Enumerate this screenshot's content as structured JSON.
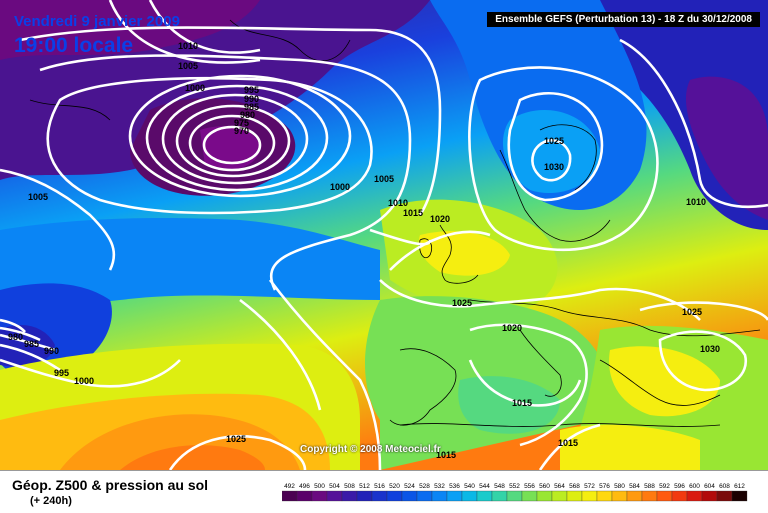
{
  "header": {
    "date_line": "Vendredi 9 janvier 2009",
    "local_time": "19:00 locale",
    "run_info": "Ensemble GEFS (Perturbation 13) - 18 Z du 30/12/2008"
  },
  "footer": {
    "product_title": "Géop. Z500 & pression au sol",
    "forecast_hour": "(+ 240h)",
    "copyright": "Copyright © 2008 Meteociel.fr"
  },
  "legend": {
    "values": [
      "492",
      "496",
      "500",
      "504",
      "508",
      "512",
      "516",
      "520",
      "524",
      "528",
      "532",
      "536",
      "540",
      "544",
      "548",
      "552",
      "556",
      "560",
      "564",
      "568",
      "572",
      "576",
      "580",
      "584",
      "588",
      "592",
      "596",
      "600",
      "604",
      "608",
      "612"
    ],
    "colors": [
      "#4b0052",
      "#5a006a",
      "#6a0a80",
      "#551199",
      "#3a1aa8",
      "#2222b8",
      "#1a33cc",
      "#1040dd",
      "#0b55e6",
      "#0a6cf0",
      "#0a85f5",
      "#0aa0f5",
      "#0ab8e6",
      "#1acbcb",
      "#33d3a8",
      "#55d980",
      "#77e055",
      "#99e633",
      "#bbec22",
      "#ddee11",
      "#f5ee10",
      "#ffd810",
      "#ffbb10",
      "#ff9a10",
      "#ff7a10",
      "#ff5a10",
      "#f23a10",
      "#d91a10",
      "#b20a0a",
      "#7a0a0a",
      "#1a0000"
    ]
  },
  "isobars": [
    {
      "value": "1010",
      "kind": "pressure"
    },
    {
      "value": "1005",
      "kind": "pressure"
    },
    {
      "value": "1000",
      "kind": "pressure"
    },
    {
      "value": "995",
      "kind": "pressure"
    },
    {
      "value": "990",
      "kind": "pressure"
    },
    {
      "value": "985",
      "kind": "pressure"
    },
    {
      "value": "980",
      "kind": "pressure"
    },
    {
      "value": "975",
      "kind": "pressure"
    },
    {
      "value": "970",
      "kind": "pressure"
    },
    {
      "value": "1025",
      "kind": "pressure"
    },
    {
      "value": "1030",
      "kind": "pressure"
    },
    {
      "value": "1015",
      "kind": "pressure"
    },
    {
      "value": "1020",
      "kind": "pressure"
    }
  ],
  "map_labels": {
    "l1010a": "1010",
    "l1005a": "1005",
    "l1000a": "1000",
    "l995": "995",
    "l990": "990",
    "l985": "985",
    "l980a": "980",
    "l975": "975",
    "l970": "970",
    "l1005w": "1005",
    "l1000c": "1000",
    "l1005c": "1005",
    "l1010b": "1010",
    "l1015a": "1015",
    "l1020a": "1020",
    "l1025a": "1025",
    "l1030a": "1030",
    "l1010e": "1010",
    "l980w": "980",
    "l985w": "985",
    "l990w": "990",
    "l995w": "995",
    "l1000w": "1000",
    "l1025b": "1025",
    "l1020b": "1020",
    "l1025e": "1025",
    "l1030e": "1030",
    "l1015b": "1015",
    "l1015c": "1015",
    "l1025s": "1025",
    "l1015d": "1015"
  }
}
